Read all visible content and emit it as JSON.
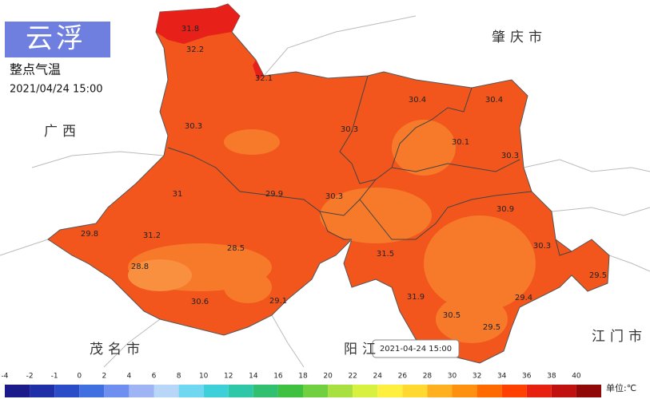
{
  "header": {
    "title": "云浮",
    "subtitle": "整点气温",
    "datetime": "2021/04/24 15:00"
  },
  "regions": [
    "肇庆市",
    "广西",
    "茂名市",
    "阳江",
    "江门市"
  ],
  "readings": [
    31.8,
    32.2,
    32.1,
    30.4,
    30.4,
    30.3,
    30.3,
    30.1,
    30.3,
    29.9,
    30.3,
    31,
    30.9,
    29.8,
    31.2,
    28.5,
    30.3,
    31.5,
    29.5,
    28.8,
    30.6,
    29.1,
    31.9,
    30.5,
    29.4,
    29.5
  ],
  "tooltip": "2021-04-24 15:00",
  "legend": {
    "ticks": [
      -4,
      -2,
      -1,
      0,
      2,
      4,
      6,
      8,
      10,
      12,
      14,
      16,
      18,
      20,
      22,
      24,
      26,
      28,
      30,
      32,
      34,
      36,
      38,
      40
    ],
    "colors": [
      "#1a1a8a",
      "#1f2fa8",
      "#2a4cc8",
      "#3f6fe0",
      "#6f8ff0",
      "#9fb4f5",
      "#b8d6f8",
      "#6fd8f0",
      "#3ed0d8",
      "#2ec8a8",
      "#30c070",
      "#40c040",
      "#70d040",
      "#a8e040",
      "#d8f040",
      "#fff040",
      "#ffd830",
      "#ffb020",
      "#ff9010",
      "#ff6a00",
      "#ff4000",
      "#e82010",
      "#c01010",
      "#900808"
    ],
    "unit": "单位:℃"
  }
}
